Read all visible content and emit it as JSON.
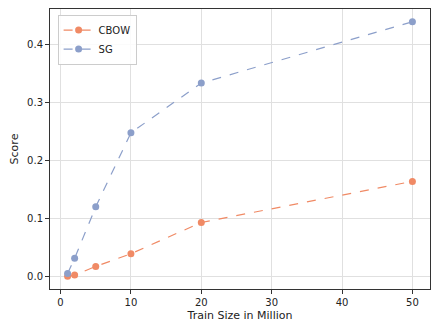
{
  "chart_data": {
    "type": "line",
    "x_label": "Train Size in Million",
    "y_label": "Score",
    "x": [
      1,
      2,
      5,
      10,
      20,
      50
    ],
    "series": [
      {
        "name": "CBOW",
        "color": "#f08a65",
        "marker": "circle",
        "line_style": "dashed",
        "values": [
          0.0,
          0.002,
          0.017,
          0.039,
          0.093,
          0.164
        ]
      },
      {
        "name": "SG",
        "color": "#8c9fca",
        "marker": "circle",
        "line_style": "dashed",
        "values": [
          0.005,
          0.031,
          0.12,
          0.248,
          0.334,
          0.44
        ]
      }
    ],
    "xlim": [
      -1.5,
      52.5
    ],
    "xticks": [
      0,
      10,
      20,
      30,
      40,
      50
    ],
    "ylim": [
      -0.022,
      0.462
    ],
    "yticks": [
      {
        "value": 0,
        "label": "0.0"
      },
      {
        "value": 0.1,
        "label": "0.1"
      },
      {
        "value": 0.2,
        "label": "0.2"
      },
      {
        "value": 0.3,
        "label": "0.3"
      },
      {
        "value": 0.4,
        "label": "0.4"
      }
    ],
    "grid": true,
    "legend": "upper left"
  }
}
